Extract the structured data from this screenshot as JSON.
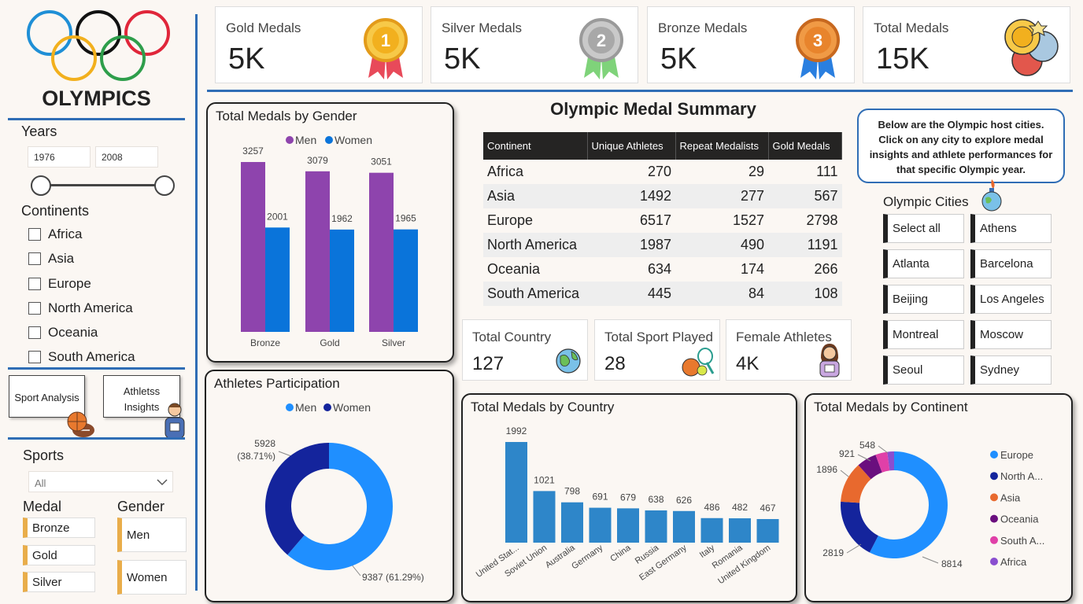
{
  "logo": {
    "title": "OLYMPICS",
    "ring_colors": [
      "#1f8fd6",
      "#111111",
      "#e0263a",
      "#f2b01e",
      "#2e9e4b"
    ]
  },
  "filters": {
    "years_label": "Years",
    "year_from": "1976",
    "year_to": "2008",
    "continents_label": "Continents",
    "continents": [
      "Africa",
      "Asia",
      "Europe",
      "North America",
      "Oceania",
      "South America"
    ],
    "nav": {
      "sport_analysis": "Sport Analysis",
      "athletes_insights_line1": "Athletss",
      "athletes_insights_line2": "Insights"
    },
    "sports_label": "Sports",
    "sports_value": "All",
    "medal_label": "Medal",
    "medals": [
      "Bronze",
      "Gold",
      "Silver"
    ],
    "gender_label": "Gender",
    "genders": [
      "Men",
      "Women"
    ]
  },
  "kpis": [
    {
      "label": "Gold Medals",
      "value": "5K",
      "icon": "gold-medal-icon",
      "color": "#f2b01e",
      "digit": "1"
    },
    {
      "label": "Silver Medals",
      "value": "5K",
      "icon": "silver-medal-icon",
      "color": "#a8a8a8",
      "digit": "2"
    },
    {
      "label": "Bronze Medals",
      "value": "5K",
      "icon": "bronze-medal-icon",
      "color": "#e8842c",
      "digit": "3"
    },
    {
      "label": "Total Medals",
      "value": "15K",
      "icon": "medals-stack-icon",
      "color": "#e2574c"
    }
  ],
  "gender_chart": {
    "title": "Total Medals by Gender",
    "legend": [
      "Men",
      "Women"
    ],
    "colors": [
      "#8e44ad",
      "#0a74da"
    ]
  },
  "participation": {
    "title": "Athletes Participation",
    "legend": [
      "Men",
      "Women"
    ],
    "colors": [
      "#1f8fff",
      "#14249c"
    ],
    "women_label_1": "5928",
    "women_label_2": "(38.71%)",
    "men_label": "9387 (61.29%)"
  },
  "summary": {
    "title": "Olympic Medal Summary",
    "headers": [
      "Continent",
      "Unique Athletes",
      "Repeat Medalists",
      "Gold Medals"
    ],
    "rows": [
      [
        "Africa",
        "270",
        "29",
        "111"
      ],
      [
        "Asia",
        "1492",
        "277",
        "567"
      ],
      [
        "Europe",
        "6517",
        "1527",
        "2798"
      ],
      [
        "North America",
        "1987",
        "490",
        "1191"
      ],
      [
        "Oceania",
        "634",
        "174",
        "266"
      ],
      [
        "South America",
        "445",
        "84",
        "108"
      ]
    ]
  },
  "stats": [
    {
      "label": "Total Country",
      "value": "127",
      "icon": "globe-icon"
    },
    {
      "label": "Total Sport Played",
      "value": "28",
      "icon": "sports-balls-icon"
    },
    {
      "label": "Female Athletes",
      "value": "4K",
      "icon": "female-athlete-icon"
    }
  ],
  "cities": {
    "info": "Below are the Olympic host cities. Click on any city to explore medal insights and athlete performances for that specific Olympic year.",
    "title": "Olympic Cities",
    "items": [
      "Select all",
      "Athens",
      "Atlanta",
      "Barcelona",
      "Beijing",
      "Los Angeles",
      "Montreal",
      "Moscow",
      "Seoul",
      "Sydney"
    ]
  },
  "country_chart": {
    "title": "Total Medals by Country",
    "color": "#2e86c9"
  },
  "continent_chart": {
    "title": "Total Medals by Continent"
  },
  "chart_data": [
    {
      "type": "bar",
      "title": "Total Medals by Gender",
      "categories": [
        "Bronze",
        "Gold",
        "Silver"
      ],
      "series": [
        {
          "name": "Men",
          "values": [
            3257,
            3079,
            3051
          ]
        },
        {
          "name": "Women",
          "values": [
            2001,
            1962,
            1965
          ]
        }
      ],
      "ylim": [
        0,
        3500
      ]
    },
    {
      "type": "pie",
      "title": "Athletes Participation",
      "categories": [
        "Men",
        "Women"
      ],
      "values": [
        9387,
        5928
      ],
      "percent": [
        61.29,
        38.71
      ]
    },
    {
      "type": "bar",
      "title": "Total Medals by Country",
      "categories": [
        "United Stat...",
        "Soviet Union",
        "Australia",
        "Germany",
        "China",
        "Russia",
        "East Germany",
        "Italy",
        "Romania",
        "United Kingdom"
      ],
      "values": [
        1992,
        1021,
        798,
        691,
        679,
        638,
        626,
        486,
        482,
        467
      ],
      "ylim": [
        0,
        2100
      ]
    },
    {
      "type": "pie",
      "title": "Total Medals by Continent",
      "categories": [
        "Europe",
        "North A...",
        "Asia",
        "Oceania",
        "South A...",
        "Africa"
      ],
      "values": [
        8814,
        2819,
        1896,
        921,
        548,
        315
      ],
      "colors": [
        "#1f8fff",
        "#14249c",
        "#e8692e",
        "#6a0f7e",
        "#e040a8",
        "#8a4fd0"
      ]
    }
  ]
}
